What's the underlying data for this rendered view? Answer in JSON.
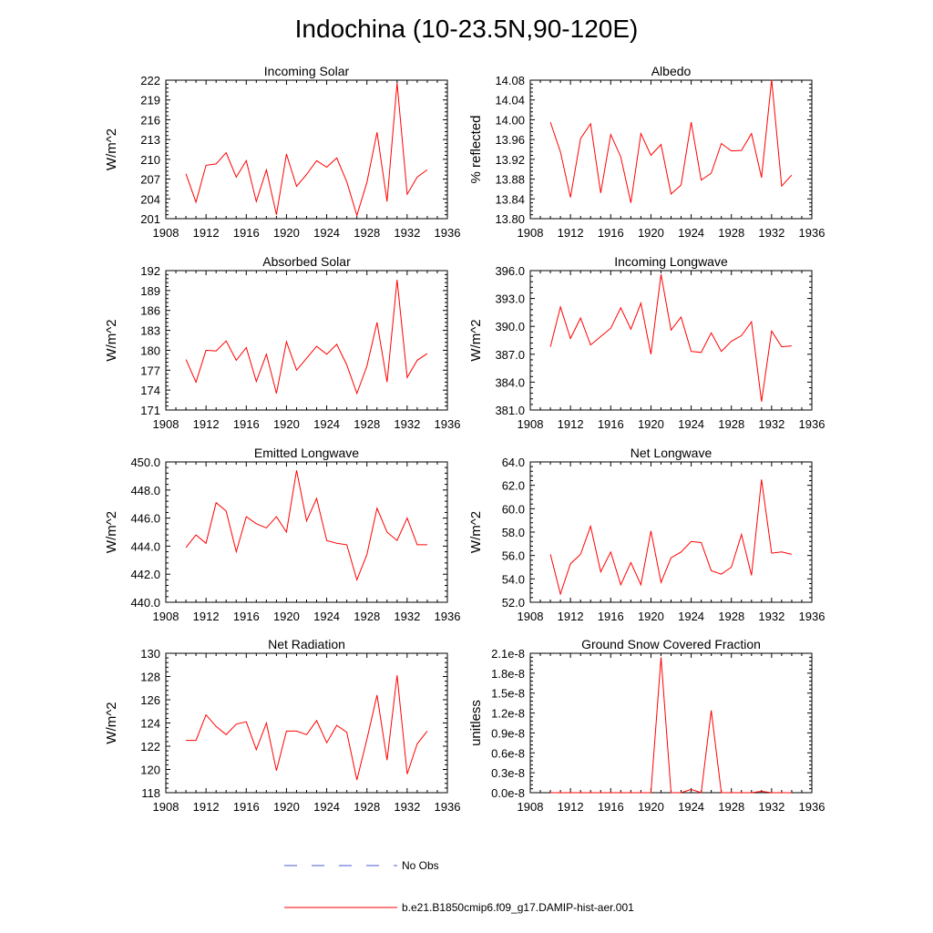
{
  "title": "Indochina (10-23.5N,90-120E)",
  "colors": {
    "model": "#ff0000",
    "obs": "#4a5bd6",
    "axis": "#000000"
  },
  "legend": {
    "obs_label": "No Obs",
    "model_label": "b.e21.B1850cmip6.f09_g17.DAMIP-hist-aer.001"
  },
  "chart_data": [
    {
      "type": "line",
      "title": "Incoming Solar",
      "xlabel": "",
      "ylabel": "W/m^2",
      "xlim": [
        1908,
        1936
      ],
      "ylim": [
        201,
        222
      ],
      "xticks": [
        "1908",
        "1912",
        "1916",
        "1920",
        "1924",
        "1928",
        "1932",
        "1936"
      ],
      "yticks": [
        "201",
        "204",
        "207",
        "210",
        "213",
        "216",
        "219",
        "222"
      ],
      "x": [
        1910,
        1911,
        1912,
        1913,
        1914,
        1915,
        1916,
        1917,
        1918,
        1919,
        1920,
        1921,
        1922,
        1923,
        1924,
        1925,
        1926,
        1927,
        1928,
        1929,
        1930,
        1931,
        1932,
        1933,
        1934
      ],
      "series": [
        {
          "values": [
            207.8,
            203.5,
            209.1,
            209.3,
            211.0,
            207.3,
            209.8,
            203.6,
            208.4,
            201.6,
            210.8,
            205.9,
            207.7,
            209.8,
            208.8,
            210.2,
            206.6,
            201.5,
            206.5,
            214.1,
            203.6,
            221.6,
            204.7,
            207.3,
            208.4
          ]
        }
      ]
    },
    {
      "type": "line",
      "title": "Albedo",
      "xlabel": "",
      "ylabel": "% reflected",
      "xlim": [
        1908,
        1936
      ],
      "ylim": [
        13.8,
        14.08
      ],
      "xticks": [
        "1908",
        "1912",
        "1916",
        "1920",
        "1924",
        "1928",
        "1932",
        "1936"
      ],
      "yticks": [
        "13.80",
        "13.84",
        "13.88",
        "13.92",
        "13.96",
        "14.00",
        "14.04",
        "14.08"
      ],
      "x": [
        1910,
        1911,
        1912,
        1913,
        1914,
        1915,
        1916,
        1917,
        1918,
        1919,
        1920,
        1921,
        1922,
        1923,
        1924,
        1925,
        1926,
        1927,
        1928,
        1929,
        1930,
        1931,
        1932,
        1933,
        1934
      ],
      "series": [
        {
          "values": [
            13.995,
            13.935,
            13.843,
            13.962,
            13.992,
            13.852,
            13.97,
            13.925,
            13.832,
            13.972,
            13.928,
            13.95,
            13.85,
            13.868,
            13.995,
            13.878,
            13.892,
            13.952,
            13.937,
            13.938,
            13.972,
            13.883,
            14.081,
            13.866,
            13.888
          ]
        }
      ]
    },
    {
      "type": "line",
      "title": "Absorbed Solar",
      "xlabel": "",
      "ylabel": "W/m^2",
      "xlim": [
        1908,
        1936
      ],
      "ylim": [
        171,
        192
      ],
      "xticks": [
        "1908",
        "1912",
        "1916",
        "1920",
        "1924",
        "1928",
        "1932",
        "1936"
      ],
      "yticks": [
        "171",
        "174",
        "177",
        "180",
        "183",
        "186",
        "189",
        "192"
      ],
      "x": [
        1910,
        1911,
        1912,
        1913,
        1914,
        1915,
        1916,
        1917,
        1918,
        1919,
        1920,
        1921,
        1922,
        1923,
        1924,
        1925,
        1926,
        1927,
        1928,
        1929,
        1930,
        1931,
        1932,
        1933,
        1934
      ],
      "series": [
        {
          "values": [
            178.6,
            175.2,
            180.0,
            179.9,
            181.4,
            178.5,
            180.4,
            175.3,
            179.4,
            173.5,
            181.3,
            177.0,
            178.8,
            180.6,
            179.4,
            180.9,
            177.8,
            173.5,
            177.6,
            184.2,
            175.2,
            190.6,
            175.9,
            178.5,
            179.5
          ]
        }
      ]
    },
    {
      "type": "line",
      "title": "Incoming Longwave",
      "xlabel": "",
      "ylabel": "W/m^2",
      "xlim": [
        1908,
        1936
      ],
      "ylim": [
        381.0,
        396.0
      ],
      "xticks": [
        "1908",
        "1912",
        "1916",
        "1920",
        "1924",
        "1928",
        "1932",
        "1936"
      ],
      "yticks": [
        "381.0",
        "384.0",
        "387.0",
        "390.0",
        "393.0",
        "396.0"
      ],
      "x": [
        1910,
        1911,
        1912,
        1913,
        1914,
        1915,
        1916,
        1917,
        1918,
        1919,
        1920,
        1921,
        1922,
        1923,
        1924,
        1925,
        1926,
        1927,
        1928,
        1929,
        1930,
        1931,
        1932,
        1933,
        1934
      ],
      "series": [
        {
          "values": [
            387.8,
            392.1,
            388.7,
            390.9,
            388.0,
            388.9,
            389.8,
            392.0,
            389.7,
            392.5,
            387.0,
            395.6,
            389.6,
            391.0,
            387.3,
            387.2,
            389.3,
            387.3,
            388.4,
            389.0,
            390.5,
            381.9,
            389.5,
            387.8,
            387.9
          ]
        }
      ]
    },
    {
      "type": "line",
      "title": "Emitted Longwave",
      "xlabel": "",
      "ylabel": "W/m^2",
      "xlim": [
        1908,
        1936
      ],
      "ylim": [
        440.0,
        450.0
      ],
      "xticks": [
        "1908",
        "1912",
        "1916",
        "1920",
        "1924",
        "1928",
        "1932",
        "1936"
      ],
      "yticks": [
        "440.0",
        "442.0",
        "444.0",
        "446.0",
        "448.0",
        "450.0"
      ],
      "x": [
        1910,
        1911,
        1912,
        1913,
        1914,
        1915,
        1916,
        1917,
        1918,
        1919,
        1920,
        1921,
        1922,
        1923,
        1924,
        1925,
        1926,
        1927,
        1928,
        1929,
        1930,
        1931,
        1932,
        1933,
        1934
      ],
      "series": [
        {
          "values": [
            443.9,
            444.8,
            444.2,
            447.1,
            446.5,
            443.6,
            446.1,
            445.6,
            445.3,
            446.1,
            445.0,
            449.4,
            445.8,
            447.4,
            444.4,
            444.2,
            444.1,
            441.6,
            443.4,
            446.7,
            445.0,
            444.4,
            446.0,
            444.1,
            444.1
          ]
        }
      ]
    },
    {
      "type": "line",
      "title": "Net Longwave",
      "xlabel": "",
      "ylabel": "W/m^2",
      "xlim": [
        1908,
        1936
      ],
      "ylim": [
        52.0,
        64.0
      ],
      "xticks": [
        "1908",
        "1912",
        "1916",
        "1920",
        "1924",
        "1928",
        "1932",
        "1936"
      ],
      "yticks": [
        "52.0",
        "54.0",
        "56.0",
        "58.0",
        "60.0",
        "62.0",
        "64.0"
      ],
      "x": [
        1910,
        1911,
        1912,
        1913,
        1914,
        1915,
        1916,
        1917,
        1918,
        1919,
        1920,
        1921,
        1922,
        1923,
        1924,
        1925,
        1926,
        1927,
        1928,
        1929,
        1930,
        1931,
        1932,
        1933,
        1934
      ],
      "series": [
        {
          "values": [
            56.1,
            52.7,
            55.3,
            56.1,
            58.5,
            54.6,
            56.3,
            53.5,
            55.4,
            53.5,
            58.1,
            53.7,
            55.8,
            56.3,
            57.2,
            57.1,
            54.7,
            54.4,
            55.0,
            57.8,
            54.3,
            62.5,
            56.2,
            56.3,
            56.1
          ]
        }
      ]
    },
    {
      "type": "line",
      "title": "Net Radiation",
      "xlabel": "",
      "ylabel": "W/m^2",
      "xlim": [
        1908,
        1936
      ],
      "ylim": [
        118,
        130
      ],
      "xticks": [
        "1908",
        "1912",
        "1916",
        "1920",
        "1924",
        "1928",
        "1932",
        "1936"
      ],
      "yticks": [
        "118",
        "120",
        "122",
        "124",
        "126",
        "128",
        "130"
      ],
      "x": [
        1910,
        1911,
        1912,
        1913,
        1914,
        1915,
        1916,
        1917,
        1918,
        1919,
        1920,
        1921,
        1922,
        1923,
        1924,
        1925,
        1926,
        1927,
        1928,
        1929,
        1930,
        1931,
        1932,
        1933,
        1934
      ],
      "series": [
        {
          "values": [
            122.5,
            122.5,
            124.7,
            123.7,
            123.0,
            123.9,
            124.1,
            121.7,
            124.0,
            119.9,
            123.3,
            123.3,
            123.0,
            124.2,
            122.3,
            123.8,
            123.2,
            119.1,
            122.6,
            126.4,
            120.8,
            128.1,
            119.6,
            122.2,
            123.3
          ]
        }
      ]
    },
    {
      "type": "line",
      "title": "Ground Snow Covered Fraction",
      "xlabel": "",
      "ylabel": "unitless",
      "xlim": [
        1908,
        1936
      ],
      "ylim": [
        0.0,
        2.1e-08
      ],
      "xticks": [
        "1908",
        "1912",
        "1916",
        "1920",
        "1924",
        "1928",
        "1932",
        "1936"
      ],
      "yticks": [
        "0.0e-8",
        "0.3e-8",
        "0.6e-8",
        "0.9e-8",
        "1.2e-8",
        "1.5e-8",
        "1.8e-8",
        "2.1e-8"
      ],
      "x": [
        1910,
        1911,
        1912,
        1913,
        1914,
        1915,
        1916,
        1917,
        1918,
        1919,
        1920,
        1921,
        1922,
        1923,
        1924,
        1925,
        1926,
        1927,
        1928,
        1929,
        1930,
        1931,
        1932,
        1933,
        1934
      ],
      "series": [
        {
          "values": [
            0,
            0,
            0,
            0,
            0,
            0,
            0,
            0,
            0,
            0,
            0,
            2.04e-08,
            0,
            0,
            5e-10,
            0,
            1.24e-08,
            0,
            0,
            0,
            0,
            2e-10,
            0,
            0,
            0
          ]
        }
      ]
    }
  ]
}
